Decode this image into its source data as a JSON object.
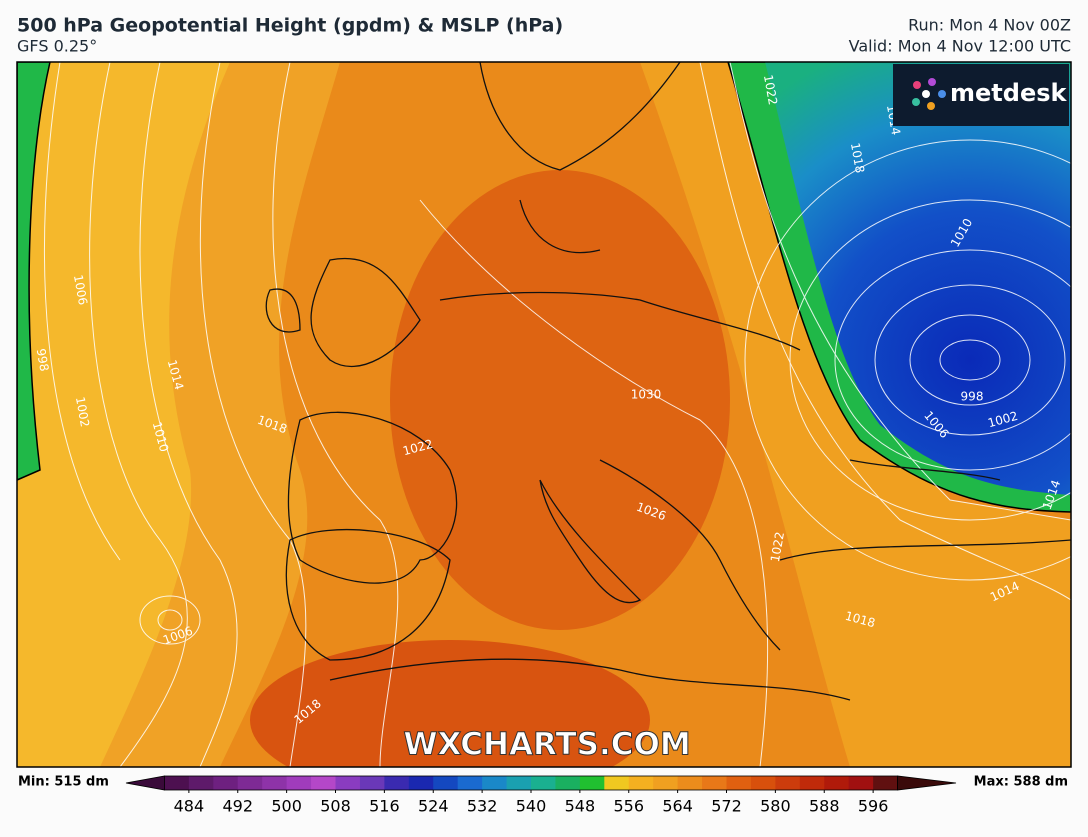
{
  "header": {
    "title": "500 hPa Geopotential Height (gpdm) & MSLP (hPa)",
    "subtitle": "GFS 0.25°",
    "run": "Run: Mon 4 Nov 00Z",
    "valid": "Valid: Mon 4 Nov 12:00 UTC"
  },
  "logo": "metdesk",
  "watermark": "WXCHARTS.COM",
  "map": {
    "isobar_labels": [
      "1022",
      "1014",
      "1018",
      "1010",
      "1006",
      "998",
      "1014",
      "1002",
      "1010",
      "1018",
      "1022",
      "1030",
      "998",
      "1006",
      "1002",
      "1014",
      "1026",
      "1022",
      "1014",
      "1018",
      "1006",
      "1018"
    ]
  },
  "colorbar": {
    "min_label": "Min: 515 dm",
    "max_label": "Max: 588 dm",
    "lim": [
      476,
      604
    ],
    "step": 4,
    "ticks": [
      484,
      492,
      500,
      508,
      516,
      524,
      532,
      540,
      548,
      556,
      564,
      572,
      580,
      588,
      596
    ],
    "colors": [
      "#3a0a3a",
      "#4d1050",
      "#5e1a6a",
      "#6e2080",
      "#7e2a95",
      "#8e33a8",
      "#a03cbc",
      "#b447c8",
      "#8a3cc0",
      "#6a38b8",
      "#3a2ab0",
      "#1a28b0",
      "#1448c0",
      "#1a6ad0",
      "#1a88c8",
      "#1aa0b0",
      "#1ab090",
      "#1ab060",
      "#20c030",
      "#f0c820",
      "#f5b020",
      "#f0a020",
      "#ec8c1c",
      "#e87818",
      "#e06010",
      "#d8500c",
      "#cc3c0c",
      "#c02a0a",
      "#b01a0a",
      "#a01010",
      "#601010",
      "#3a0a0a"
    ]
  }
}
